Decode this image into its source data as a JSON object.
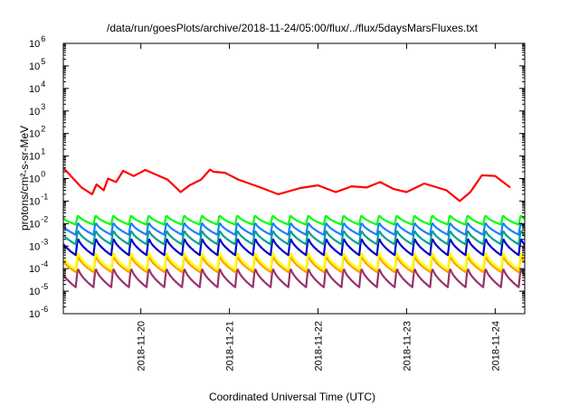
{
  "chart_data": {
    "type": "line",
    "title": "/data/run/goesPlots/archive/2018-11-24/05:00/flux/../flux/5daysMarsFluxes.txt",
    "xlabel": "Coordinated Universal Time (UTC)",
    "ylabel": "protons/cm²-s-sr-MeV",
    "y_scale": "log",
    "ylim": [
      1e-06,
      1000000.0
    ],
    "y_ticks": [
      {
        "base": "10",
        "exp": "-6"
      },
      {
        "base": "10",
        "exp": "-5"
      },
      {
        "base": "10",
        "exp": "-4"
      },
      {
        "base": "10",
        "exp": "-3"
      },
      {
        "base": "10",
        "exp": "-2"
      },
      {
        "base": "10",
        "exp": "-1"
      },
      {
        "base": "10",
        "exp": "0"
      },
      {
        "base": "10",
        "exp": "1"
      },
      {
        "base": "10",
        "exp": "2"
      },
      {
        "base": "10",
        "exp": "3"
      },
      {
        "base": "10",
        "exp": "4"
      },
      {
        "base": "10",
        "exp": "5"
      },
      {
        "base": "10",
        "exp": "6"
      }
    ],
    "x_start": "2018-11-19 03:00",
    "x_end": "2018-11-24 05:00",
    "x_tick_labels": [
      "2018-11-20",
      "2018-11-21",
      "2018-11-22",
      "2018-11-23",
      "2018-11-24"
    ],
    "x_ticks_day": [
      1,
      2,
      3,
      4,
      5
    ],
    "grid": false,
    "legend": "none",
    "series": [
      {
        "color": "#ff0000",
        "x_day": [
          0.125,
          0.33,
          0.45,
          0.5,
          0.58,
          0.63,
          0.72,
          0.8,
          0.92,
          1.05,
          1.3,
          1.45,
          1.55,
          1.68,
          1.78,
          1.82,
          1.95,
          2.1,
          2.35,
          2.55,
          2.8,
          3.0,
          3.2,
          3.38,
          3.55,
          3.7,
          3.85,
          4.0,
          4.2,
          4.45,
          4.6,
          4.72,
          4.85,
          5.0,
          5.17
        ],
        "y": [
          3.0,
          0.4,
          0.2,
          0.55,
          0.3,
          1.0,
          0.7,
          2.2,
          1.3,
          2.4,
          0.9,
          0.25,
          0.5,
          0.9,
          2.5,
          2.0,
          1.8,
          0.9,
          0.4,
          0.2,
          0.38,
          0.5,
          0.25,
          0.45,
          0.4,
          0.7,
          0.35,
          0.25,
          0.6,
          0.3,
          0.1,
          0.25,
          1.4,
          1.3,
          0.4
        ]
      },
      {
        "color": "#00ff00",
        "oscillation": {
          "peak": 0.025,
          "trough": 0.009,
          "period_days": 0.2,
          "start_day": 0.14
        }
      },
      {
        "color": "#1a7fff",
        "oscillation": {
          "peak": 0.012,
          "trough": 0.0032,
          "period_days": 0.2,
          "start_day": 0.14
        }
      },
      {
        "color": "#00a090",
        "oscillation": {
          "peak": 0.0055,
          "trough": 0.0012,
          "period_days": 0.2,
          "start_day": 0.14
        }
      },
      {
        "color": "#0000d0",
        "oscillation": {
          "peak": 0.0025,
          "trough": 0.0004,
          "period_days": 0.2,
          "start_day": 0.14
        }
      },
      {
        "color": "#ffff00",
        "oscillation": {
          "peak": 0.0006,
          "trough": 9e-05,
          "period_days": 0.2,
          "start_day": 0.14
        }
      },
      {
        "color": "#ffa000",
        "oscillation": {
          "peak": 0.0004,
          "trough": 7e-05,
          "period_days": 0.2,
          "start_day": 0.14
        }
      },
      {
        "color": "#993366",
        "oscillation": {
          "peak": 0.00012,
          "trough": 1.5e-05,
          "period_days": 0.2,
          "start_day": 0.14
        }
      }
    ]
  }
}
